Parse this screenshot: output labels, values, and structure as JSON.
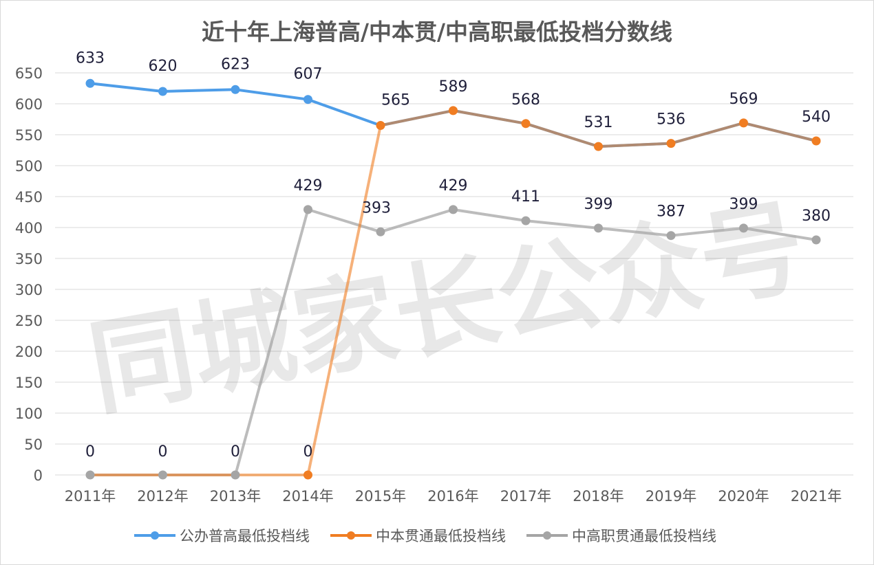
{
  "chart_data": {
    "type": "line",
    "title": "近十年上海普高/中本贯/中高职最低投档分数线",
    "x": [
      "2011年",
      "2012年",
      "2013年",
      "2014年",
      "2015年",
      "2016年",
      "2017年",
      "2018年",
      "2019年",
      "2020年",
      "2021年"
    ],
    "ylim": [
      0,
      650
    ],
    "yticks": [
      0,
      50,
      100,
      150,
      200,
      250,
      300,
      350,
      400,
      450,
      500,
      550,
      600,
      650
    ],
    "grid": true,
    "legend_position": "bottom",
    "series": [
      {
        "name": "公办普高最低投档线",
        "color": "#4e9de8",
        "values": [
          633,
          620,
          623,
          607,
          565,
          589,
          568,
          531,
          536,
          569,
          540
        ]
      },
      {
        "name": "中本贯通最低投档线",
        "color": "#f07d22",
        "values": [
          0,
          0,
          0,
          0,
          565,
          589,
          568,
          531,
          536,
          569,
          540
        ]
      },
      {
        "name": "中高职贯通最低投档线",
        "color": "#a5a5a5",
        "values": [
          0,
          0,
          0,
          429,
          393,
          429,
          411,
          399,
          387,
          399,
          380
        ]
      }
    ]
  },
  "watermark": "同城家长公众号"
}
